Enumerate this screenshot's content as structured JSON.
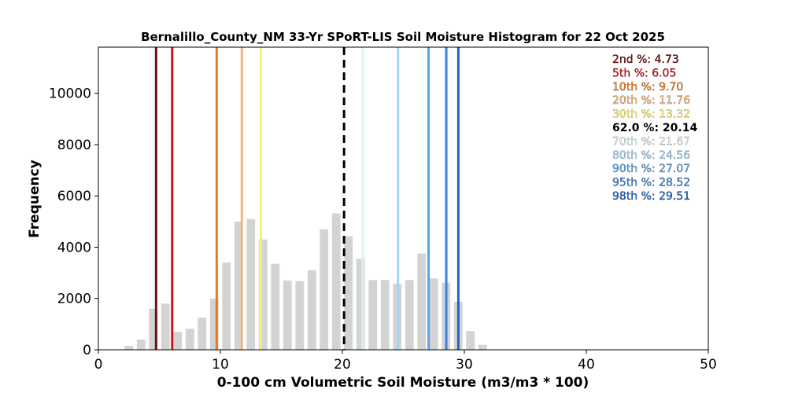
{
  "chart_data": {
    "type": "bar",
    "title": "Bernalillo_County_NM 33-Yr SPoRT-LIS Soil Moisture Histogram for 22 Oct 2025",
    "xlabel": "0-100 cm Volumetric Soil Moisture (m3/m3 * 100)",
    "ylabel": "Frequency",
    "xlim": [
      0,
      50
    ],
    "ylim": [
      0,
      11800
    ],
    "xticks": [
      "0",
      "10",
      "20",
      "30",
      "40",
      "50"
    ],
    "yticks": [
      "0",
      "2000",
      "4000",
      "6000",
      "8000",
      "10000"
    ],
    "bar_color": "#d3d3d3",
    "bins": {
      "x": [
        2.5,
        3.5,
        4.5,
        5.5,
        6.5,
        7.5,
        8.5,
        9.5,
        10.5,
        11.5,
        12.5,
        13.5,
        14.5,
        15.5,
        16.5,
        17.5,
        18.5,
        19.5,
        20.5,
        21.5,
        22.5,
        23.5,
        24.5,
        25.5,
        26.5,
        27.5,
        28.5,
        29.5,
        30.5,
        31.5
      ],
      "values": [
        150,
        400,
        1600,
        1800,
        700,
        820,
        1250,
        2000,
        3400,
        5000,
        5100,
        4300,
        3350,
        2700,
        2680,
        3100,
        4700,
        5320,
        4430,
        3550,
        2720,
        2720,
        2580,
        2720,
        3750,
        2780,
        2620,
        1870,
        730,
        190
      ]
    },
    "percentiles": [
      {
        "label": "2nd %",
        "value": "4.73",
        "color": "#6e0f12",
        "style": "solid"
      },
      {
        "label": "5th %",
        "value": "6.05",
        "color": "#c8151b",
        "style": "solid"
      },
      {
        "label": "10th %",
        "value": "9.70",
        "color": "#e67a22",
        "style": "solid"
      },
      {
        "label": "20th %",
        "value": "11.76",
        "color": "#f5b27a",
        "style": "solid"
      },
      {
        "label": "30th %",
        "value": "13.32",
        "color": "#f8f07a",
        "style": "solid"
      },
      {
        "label": "62.0 %",
        "value": "20.14",
        "color": "#000000",
        "style": "dashed"
      },
      {
        "label": "70th %",
        "value": "21.67",
        "color": "#dff0f8",
        "style": "solid"
      },
      {
        "label": "80th %",
        "value": "24.56",
        "color": "#a6d3ef",
        "style": "solid"
      },
      {
        "label": "90th %",
        "value": "27.07",
        "color": "#5aa2e0",
        "style": "solid"
      },
      {
        "label": "95th %",
        "value": "28.52",
        "color": "#3b84d6",
        "style": "solid"
      },
      {
        "label": "98th %",
        "value": "29.51",
        "color": "#1f66c2",
        "style": "solid"
      }
    ],
    "legend_placement": "top-right",
    "grid": false
  }
}
